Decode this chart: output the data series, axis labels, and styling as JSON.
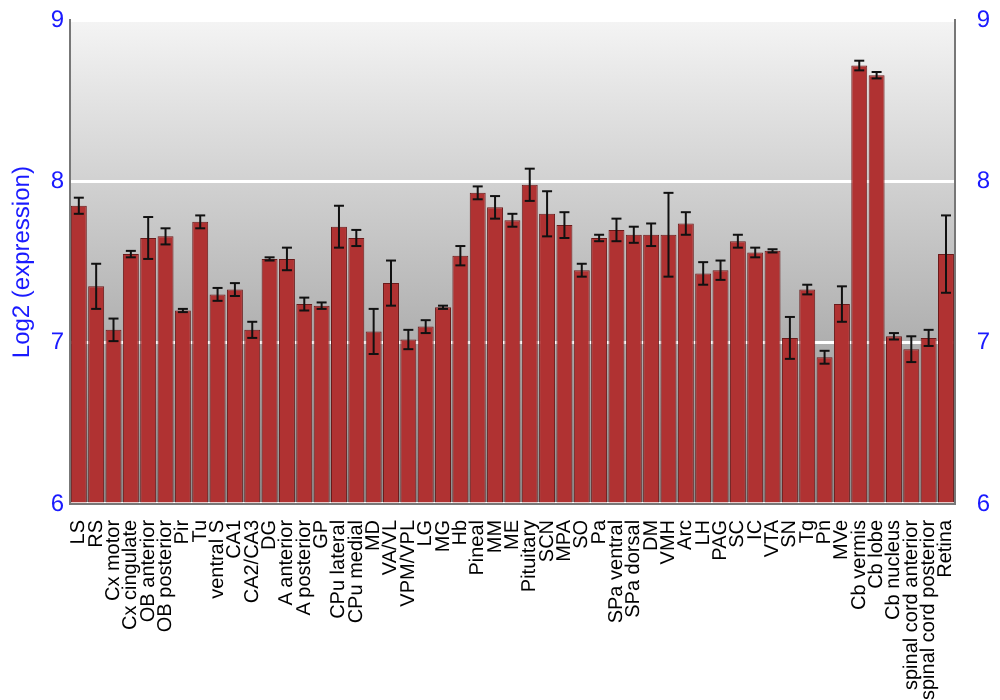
{
  "chart_data": {
    "type": "bar",
    "ylabel": "Log2 (expression)",
    "categories": [
      "LS",
      "RS",
      "Cx motor",
      "Cx cingulate",
      "OB anterior",
      "OB posterior",
      "Pir",
      "Tu",
      "ventral S",
      "CA1",
      "CA2/CA3",
      "DG",
      "A anterior",
      "A posterior",
      "GP",
      "CPu lateral",
      "CPu medial",
      "MD",
      "VA/VL",
      "VPM/VPL",
      "LG",
      "MG",
      "Hb",
      "Pineal",
      "MM",
      "ME",
      "Pituitary",
      "SCN",
      "MPA",
      "SO",
      "Pa",
      "SPa ventral",
      "SPa dorsal",
      "DM",
      "VMH",
      "Arc",
      "LH",
      "PAG",
      "SC",
      "IC",
      "VTA",
      "SN",
      "Tg",
      "Pn",
      "MVe",
      "Cb vermis",
      "Cb lobe",
      "Cb nucleus",
      "spinal cord anterior",
      "spinal cord posterior",
      "Retina"
    ],
    "values": [
      7.85,
      7.35,
      7.08,
      7.55,
      7.65,
      7.66,
      7.2,
      7.75,
      7.3,
      7.33,
      7.08,
      7.52,
      7.52,
      7.24,
      7.23,
      7.72,
      7.65,
      7.07,
      7.37,
      7.02,
      7.1,
      7.22,
      7.54,
      7.93,
      7.84,
      7.76,
      7.98,
      7.8,
      7.73,
      7.45,
      7.65,
      7.7,
      7.67,
      7.67,
      7.67,
      7.74,
      7.43,
      7.45,
      7.63,
      7.56,
      7.57,
      7.03,
      7.33,
      6.91,
      7.24,
      8.72,
      8.66,
      7.04,
      6.96,
      7.03,
      7.55
    ],
    "errors": [
      0.05,
      0.14,
      0.07,
      0.02,
      0.13,
      0.05,
      0.01,
      0.04,
      0.04,
      0.04,
      0.05,
      0.01,
      0.07,
      0.04,
      0.02,
      0.13,
      0.05,
      0.14,
      0.14,
      0.06,
      0.04,
      0.01,
      0.06,
      0.04,
      0.07,
      0.04,
      0.1,
      0.14,
      0.08,
      0.04,
      0.02,
      0.07,
      0.05,
      0.07,
      0.26,
      0.07,
      0.07,
      0.06,
      0.04,
      0.03,
      0.01,
      0.13,
      0.03,
      0.04,
      0.11,
      0.03,
      0.02,
      0.02,
      0.08,
      0.05,
      0.24
    ],
    "color": "#b03232",
    "ylim": [
      6,
      9
    ],
    "yticks": [
      6,
      7,
      8,
      9
    ],
    "y2lim": [
      6,
      9
    ],
    "y2ticks": [
      6,
      7,
      8,
      9
    ],
    "grid": "y",
    "legend": false
  }
}
